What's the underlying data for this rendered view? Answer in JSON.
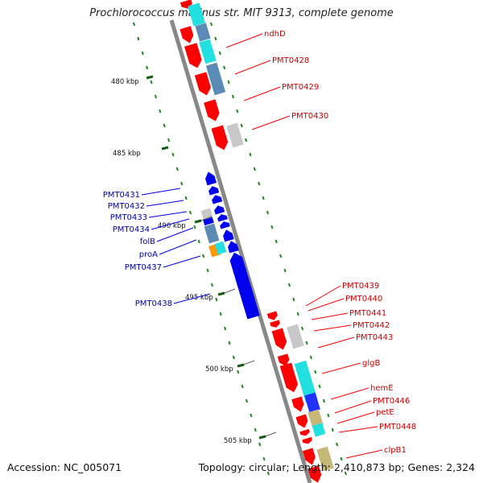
{
  "title": "Prochlorococcus marinus str. MIT 9313, complete genome",
  "footer": {
    "accession": "Accession: NC_005071",
    "summary": "Topology: circular; Length: 2,410,873 bp; Genes: 2,324"
  },
  "scale_labels": [
    "480 kbp",
    "485 kbp",
    "490 kbp",
    "495 kbp",
    "500 kbp",
    "505 kbp"
  ],
  "colors": {
    "forward_gene": "#ff0000",
    "reverse_gene": "#0000ee",
    "backbone": "#888888",
    "tick": "#1a8a1a",
    "cyan": "#22e0e0",
    "steel": "#5b8bb5",
    "grey": "#c8c8c8",
    "orange": "#ff9900",
    "olive": "#c8b878"
  },
  "forward_labels": [
    "ndhD",
    "PMT0428",
    "PMT0429",
    "PMT0430",
    "PMT0439",
    "PMT0440",
    "PMT0441",
    "PMT0442",
    "PMT0443",
    "glgB",
    "hemE",
    "PMT0446",
    "petE",
    "PMT0448",
    "clpB1"
  ],
  "reverse_labels": [
    "PMT0431",
    "PMT0432",
    "PMT0433",
    "PMT0434",
    "folB",
    "proA",
    "PMT0437",
    "PMT0438"
  ]
}
